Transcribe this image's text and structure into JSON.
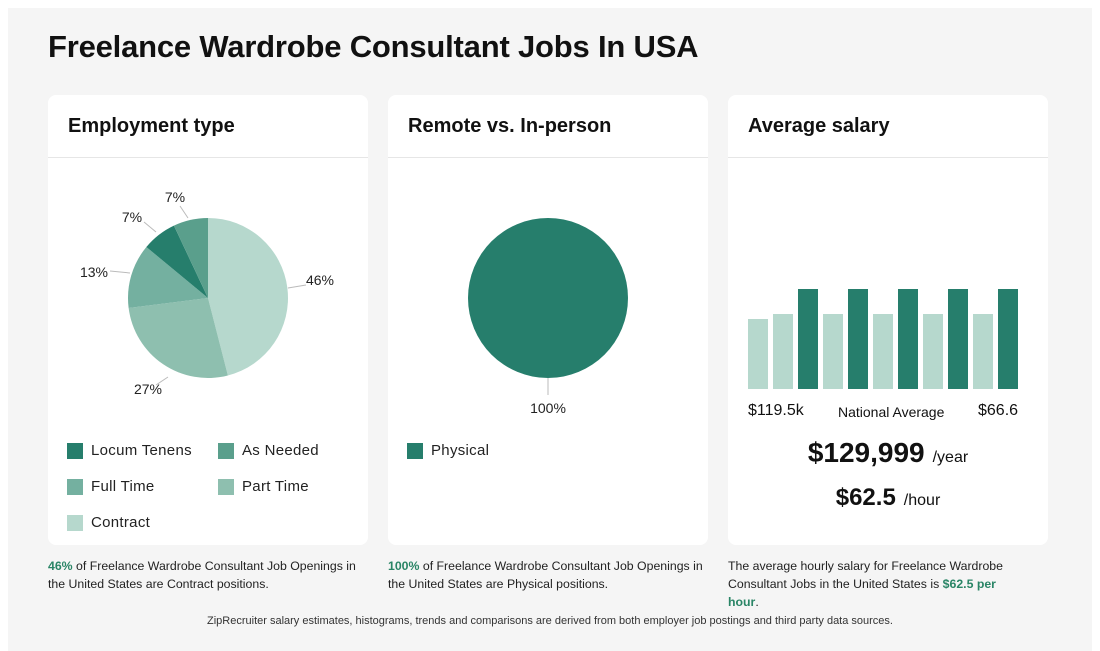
{
  "title": "Freelance Wardrobe Consultant Jobs In USA",
  "colors": {
    "dark": "#267e6c",
    "mid_dark": "#5a9f8c",
    "mid": "#74b0a0",
    "light_mid": "#8ebfaf",
    "light": "#b6d8cd",
    "highlight": "#2a8566"
  },
  "cards": {
    "employment": {
      "title": "Employment type",
      "legend": [
        "Locum Tenens",
        "As Needed",
        "Full Time",
        "Part Time",
        "Contract"
      ]
    },
    "remote": {
      "title": "Remote vs. In-person",
      "legend": [
        "Physical"
      ]
    },
    "salary": {
      "title": "Average salary",
      "left_label": "$119.5k",
      "mid_label": "National Average",
      "right_label": "$66.6",
      "yearly": "$129,999",
      "yearly_unit": "/year",
      "hourly": "$62.5",
      "hourly_unit": "/hour"
    }
  },
  "chart_data": [
    {
      "type": "pie",
      "title": "Employment type",
      "categories": [
        "Contract",
        "Part Time",
        "Full Time",
        "Locum Tenens",
        "As Needed"
      ],
      "values": [
        46,
        27,
        13,
        7,
        7
      ],
      "labels": [
        "46%",
        "27%",
        "13%",
        "7%",
        "7%"
      ],
      "colors": [
        "#b6d8cd",
        "#8ebfaf",
        "#74b0a0",
        "#267e6c",
        "#5a9f8c"
      ]
    },
    {
      "type": "pie",
      "title": "Remote vs. In-person",
      "categories": [
        "Physical"
      ],
      "values": [
        100
      ],
      "labels": [
        "100%"
      ],
      "colors": [
        "#267e6c"
      ]
    },
    {
      "type": "bar",
      "title": "Average salary",
      "values": [
        70,
        75,
        100,
        75,
        100,
        75,
        100,
        75,
        100,
        75,
        100
      ],
      "highlight": [
        false,
        false,
        true,
        false,
        true,
        false,
        true,
        false,
        true,
        false,
        true
      ]
    }
  ],
  "captions": {
    "employment": {
      "highlight": "46%",
      "text": " of Freelance Wardrobe Consultant Job Openings in the United States are Contract positions."
    },
    "remote": {
      "highlight": "100%",
      "text": " of Freelance Wardrobe Consultant Job Openings in the United States are Physical positions."
    },
    "salary": {
      "text": "The average hourly salary for Freelance Wardrobe Consultant Jobs in the United States is ",
      "highlight": "$62.5 per hour",
      "end": "."
    }
  },
  "footer": "ZipRecruiter salary estimates, histograms, trends and comparisons are derived from both employer job postings and third party data sources."
}
